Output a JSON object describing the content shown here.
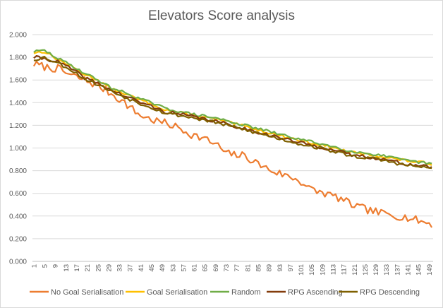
{
  "chart_data": {
    "type": "line",
    "title": "Elevators Score analysis",
    "xlabel": "",
    "ylabel": "",
    "x_start": 1,
    "x_end": 150,
    "x_tick_labels": [
      "1",
      "5",
      "9",
      "13",
      "17",
      "21",
      "25",
      "29",
      "33",
      "37",
      "41",
      "45",
      "49",
      "53",
      "57",
      "61",
      "65",
      "69",
      "73",
      "77",
      "81",
      "85",
      "89",
      "93",
      "97",
      "101",
      "105",
      "109",
      "113",
      "117",
      "121",
      "125",
      "129",
      "133",
      "137",
      "141",
      "145",
      "149"
    ],
    "ylim": [
      0,
      2
    ],
    "y_tick_labels": [
      "0.000",
      "0.200",
      "0.400",
      "0.600",
      "0.800",
      "1.000",
      "1.200",
      "1.400",
      "1.600",
      "1.800",
      "2.000"
    ],
    "grid": "horizontal",
    "legend_position": "bottom",
    "series": [
      {
        "name": "No Goal Serialisation",
        "color": "#ED7D31",
        "anchors": [
          [
            1,
            1.74
          ],
          [
            6,
            1.71
          ],
          [
            10,
            1.7
          ],
          [
            14,
            1.65
          ],
          [
            20,
            1.6
          ],
          [
            25,
            1.55
          ],
          [
            30,
            1.48
          ],
          [
            35,
            1.4
          ],
          [
            40,
            1.3
          ],
          [
            45,
            1.25
          ],
          [
            50,
            1.22
          ],
          [
            55,
            1.18
          ],
          [
            60,
            1.12
          ],
          [
            65,
            1.08
          ],
          [
            70,
            1.02
          ],
          [
            73,
            0.95
          ],
          [
            80,
            0.93
          ],
          [
            85,
            0.86
          ],
          [
            90,
            0.8
          ],
          [
            95,
            0.76
          ],
          [
            100,
            0.72
          ],
          [
            105,
            0.63
          ],
          [
            110,
            0.6
          ],
          [
            115,
            0.56
          ],
          [
            120,
            0.5
          ],
          [
            125,
            0.46
          ],
          [
            130,
            0.43
          ],
          [
            135,
            0.41
          ],
          [
            140,
            0.39
          ],
          [
            145,
            0.36
          ],
          [
            150,
            0.33
          ]
        ],
        "noise": 0.035,
        "seed": 7
      },
      {
        "name": "Goal Serialisation",
        "color": "#FFC000",
        "anchors": [
          [
            1,
            1.84
          ],
          [
            5,
            1.85
          ],
          [
            10,
            1.78
          ],
          [
            15,
            1.72
          ],
          [
            20,
            1.65
          ],
          [
            25,
            1.6
          ],
          [
            30,
            1.52
          ],
          [
            35,
            1.48
          ],
          [
            40,
            1.43
          ],
          [
            45,
            1.39
          ],
          [
            50,
            1.34
          ],
          [
            60,
            1.29
          ],
          [
            70,
            1.25
          ],
          [
            80,
            1.19
          ],
          [
            90,
            1.13
          ],
          [
            100,
            1.07
          ],
          [
            110,
            1.02
          ],
          [
            120,
            0.96
          ],
          [
            130,
            0.93
          ],
          [
            140,
            0.89
          ],
          [
            150,
            0.86
          ]
        ],
        "noise": 0.012,
        "seed": 13
      },
      {
        "name": "Random",
        "color": "#70AD47",
        "anchors": [
          [
            1,
            1.85
          ],
          [
            5,
            1.86
          ],
          [
            10,
            1.79
          ],
          [
            15,
            1.73
          ],
          [
            20,
            1.66
          ],
          [
            25,
            1.6
          ],
          [
            30,
            1.53
          ],
          [
            35,
            1.49
          ],
          [
            40,
            1.44
          ],
          [
            45,
            1.4
          ],
          [
            50,
            1.35
          ],
          [
            60,
            1.3
          ],
          [
            70,
            1.26
          ],
          [
            80,
            1.2
          ],
          [
            90,
            1.14
          ],
          [
            100,
            1.08
          ],
          [
            110,
            1.03
          ],
          [
            120,
            0.97
          ],
          [
            130,
            0.94
          ],
          [
            140,
            0.89
          ],
          [
            150,
            0.86
          ]
        ],
        "noise": 0.012,
        "seed": 29
      },
      {
        "name": "RPG Ascending",
        "color": "#843C0C",
        "anchors": [
          [
            1,
            1.8
          ],
          [
            5,
            1.79
          ],
          [
            10,
            1.76
          ],
          [
            15,
            1.7
          ],
          [
            20,
            1.62
          ],
          [
            25,
            1.57
          ],
          [
            30,
            1.51
          ],
          [
            35,
            1.46
          ],
          [
            40,
            1.41
          ],
          [
            45,
            1.37
          ],
          [
            50,
            1.32
          ],
          [
            60,
            1.28
          ],
          [
            70,
            1.23
          ],
          [
            80,
            1.17
          ],
          [
            90,
            1.11
          ],
          [
            100,
            1.05
          ],
          [
            110,
            1.0
          ],
          [
            120,
            0.94
          ],
          [
            130,
            0.91
          ],
          [
            140,
            0.86
          ],
          [
            150,
            0.83
          ]
        ],
        "noise": 0.015,
        "seed": 41
      },
      {
        "name": "RPG Descending",
        "color": "#7F6000",
        "anchors": [
          [
            1,
            1.78
          ],
          [
            5,
            1.8
          ],
          [
            10,
            1.75
          ],
          [
            15,
            1.69
          ],
          [
            20,
            1.61
          ],
          [
            25,
            1.56
          ],
          [
            30,
            1.5
          ],
          [
            35,
            1.45
          ],
          [
            40,
            1.4
          ],
          [
            45,
            1.36
          ],
          [
            50,
            1.31
          ],
          [
            60,
            1.27
          ],
          [
            70,
            1.22
          ],
          [
            80,
            1.16
          ],
          [
            90,
            1.1
          ],
          [
            100,
            1.04
          ],
          [
            110,
            0.99
          ],
          [
            120,
            0.93
          ],
          [
            130,
            0.9
          ],
          [
            140,
            0.85
          ],
          [
            150,
            0.82
          ]
        ],
        "noise": 0.015,
        "seed": 53
      }
    ]
  }
}
